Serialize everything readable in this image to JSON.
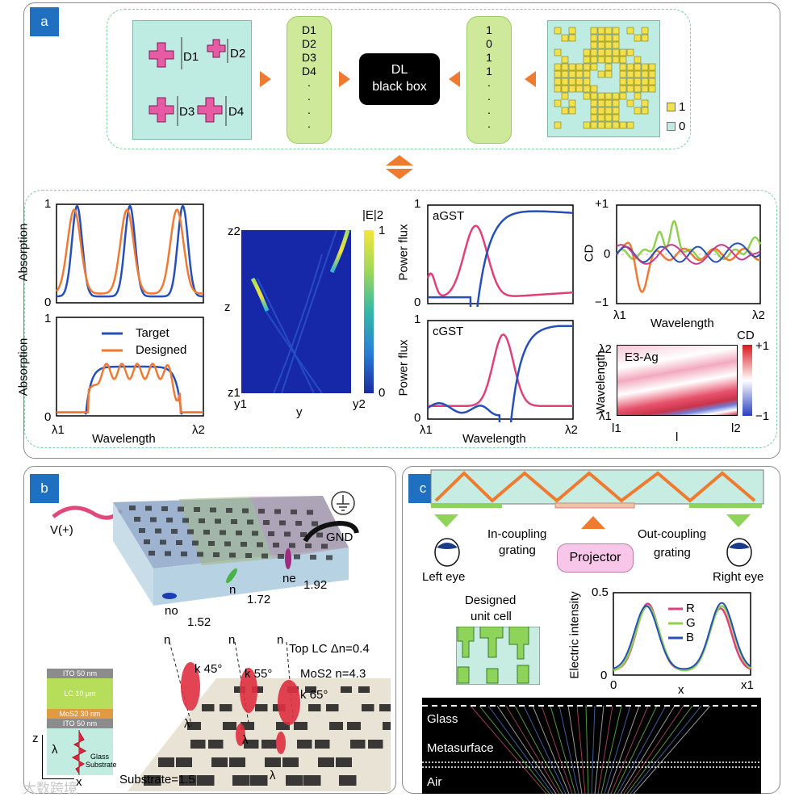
{
  "panel_a": {
    "tag": "a",
    "dims": [
      "D1",
      "D2",
      "D3",
      "D4"
    ],
    "dim_list": [
      "D1",
      "D2",
      "D3",
      "D4",
      "·",
      "·",
      "·",
      "·"
    ],
    "binary_list": [
      "1",
      "0",
      "1",
      "1",
      "·",
      "·",
      "·",
      "·"
    ],
    "black_box": [
      "DL",
      "black box"
    ],
    "legend_one": "1",
    "legend_zero": "0",
    "abs_top": {
      "ylabel": "Absorption",
      "y_max": "1",
      "y_min": "0"
    },
    "abs_bottom": {
      "ylabel": "Absorption",
      "y_max": "1",
      "y_min": "0",
      "xlabel": "Wavelength",
      "x_min": "λ1",
      "x_max": "λ2",
      "legend_target": "Target",
      "legend_designed": "Designed"
    },
    "field_map": {
      "z_top": "z2",
      "z_bottom": "z1",
      "z_label": "z",
      "y_left": "y1",
      "y_right": "y2",
      "y_label": "y",
      "cbar_label": "|E|2",
      "cbar_max": "1",
      "cbar_min": "0"
    },
    "power_top": {
      "tag": "aGST",
      "ylabel": "Power flux",
      "y_max": "1",
      "y_min": "0"
    },
    "power_bottom": {
      "tag": "cGST",
      "ylabel": "Power flux",
      "y_max": "1",
      "y_min": "0",
      "xlabel": "Wavelength",
      "x_min": "λ1",
      "x_max": "λ2"
    },
    "cd_plot": {
      "ylabel": "CD",
      "y_max": "+1",
      "y_mid": "0",
      "y_min": "−1",
      "xlabel": "Wavelength",
      "x_min": "λ1",
      "x_max": "λ2"
    },
    "cd_map": {
      "tag": "E3-Ag",
      "ylabel": "Wavelength",
      "y_top": "λ2",
      "y_bottom": "λ1",
      "x_min": "l1",
      "x_max": "l2",
      "xlabel": "l",
      "cbar_label": "CD",
      "cbar_max": "+1",
      "cbar_min": "−1"
    }
  },
  "panel_b": {
    "tag": "b",
    "voltage": "V(+)",
    "ground": "GND",
    "n_o": "no",
    "n_o_val": "1.52",
    "n": "n",
    "n_val": "1.72",
    "n_e": "ne",
    "n_e_val": "1.92",
    "stack": [
      "ITO 50 nm",
      "LC 10 μm",
      "MoS2 30 nm",
      "ITO 50 nm",
      "Glass",
      "Substrate"
    ],
    "stack_axis_z": "z",
    "stack_axis_x": "x",
    "lambda": "λ",
    "angles": [
      "k 45°",
      "k 55°",
      "k 65°"
    ],
    "top_lc": "Top LC Δn=0.4",
    "mos2": "MoS2  n=4.3",
    "substrate": "Substrate=1.5",
    "n_labels": [
      "n",
      "n",
      "n"
    ]
  },
  "panel_c": {
    "tag": "c",
    "in_coupling": [
      "In-coupling",
      "grating"
    ],
    "out_coupling": [
      "Out-coupling",
      "grating"
    ],
    "projector": "Projector",
    "left_eye": "Left eye",
    "right_eye": "Right eye",
    "unit_cell": [
      "Designed",
      "unit cell"
    ],
    "intensity": {
      "ylabel": "Electric intensity",
      "y_max": "0.5",
      "y_min": "0",
      "x_min": "0",
      "x_max": "x1",
      "xlabel": "x",
      "legend": [
        "R",
        "G",
        "B"
      ]
    },
    "sim_labels": [
      "Glass",
      "Metasurface",
      "Air"
    ],
    "watermark": "大数跨境"
  },
  "colors": {
    "tag_blue": "#1f70c1",
    "target": "#2650b8",
    "designed": "#ee7a35",
    "pink": "#e0407a",
    "green": "#90d050",
    "orange_arrow": "#ef7b30"
  }
}
